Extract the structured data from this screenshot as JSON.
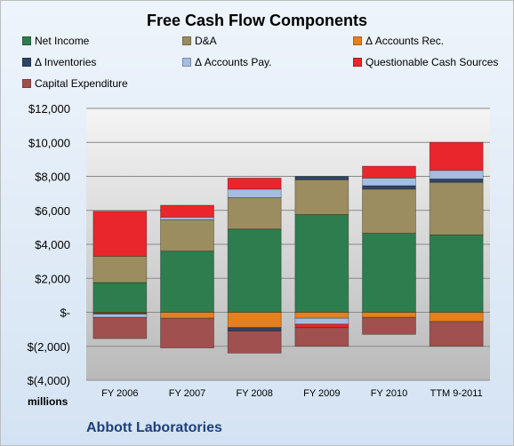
{
  "company_label": "Abbott Laboratories",
  "units_label": "millions",
  "chart_data": {
    "type": "bar",
    "stacked": true,
    "title": "Free Cash Flow Components",
    "categories": [
      "FY 2006",
      "FY 2007",
      "FY 2008",
      "FY 2009",
      "FY 2010",
      "TTM 9-2011"
    ],
    "ylim": [
      -4000,
      12000
    ],
    "yticks": [
      {
        "value": 12000,
        "label": "$12,000"
      },
      {
        "value": 10000,
        "label": "$10,000"
      },
      {
        "value": 8000,
        "label": "$8,000"
      },
      {
        "value": 6000,
        "label": "$6,000"
      },
      {
        "value": 4000,
        "label": "$4,000"
      },
      {
        "value": 2000,
        "label": "$2,000"
      },
      {
        "value": 0,
        "label": "$-"
      },
      {
        "value": -2000,
        "label": "$(2,000)"
      },
      {
        "value": -4000,
        "label": "$(4,000)"
      }
    ],
    "grid": true,
    "legend_position": "top",
    "series": [
      {
        "name": "Net Income",
        "color": "#2e7d4f",
        "values": [
          1750,
          3600,
          4900,
          5750,
          4650,
          4550
        ]
      },
      {
        "name": "D&A",
        "color": "#9b8d5f",
        "values": [
          1550,
          1850,
          1850,
          2050,
          2600,
          3100
        ]
      },
      {
        "name": "Δ Accounts Rec.",
        "color": "#e4801e",
        "values": [
          -50,
          -350,
          -900,
          -350,
          -300,
          -550
        ]
      },
      {
        "name": "Δ Inventories",
        "color": "#2f4565",
        "values": [
          -50,
          0,
          -200,
          200,
          200,
          200
        ]
      },
      {
        "name": "Δ Accounts Pay.",
        "color": "#a4bde0",
        "values": [
          -200,
          150,
          500,
          -350,
          450,
          500
        ]
      },
      {
        "name": "Questionable Cash Sources",
        "color": "#e8262b",
        "values": [
          2650,
          700,
          650,
          -200,
          700,
          1650
        ]
      },
      {
        "name": "Capital Expenditure",
        "color": "#a0504f",
        "values": [
          -1250,
          -1750,
          -1300,
          -1100,
          -1000,
          -1450
        ]
      }
    ]
  }
}
